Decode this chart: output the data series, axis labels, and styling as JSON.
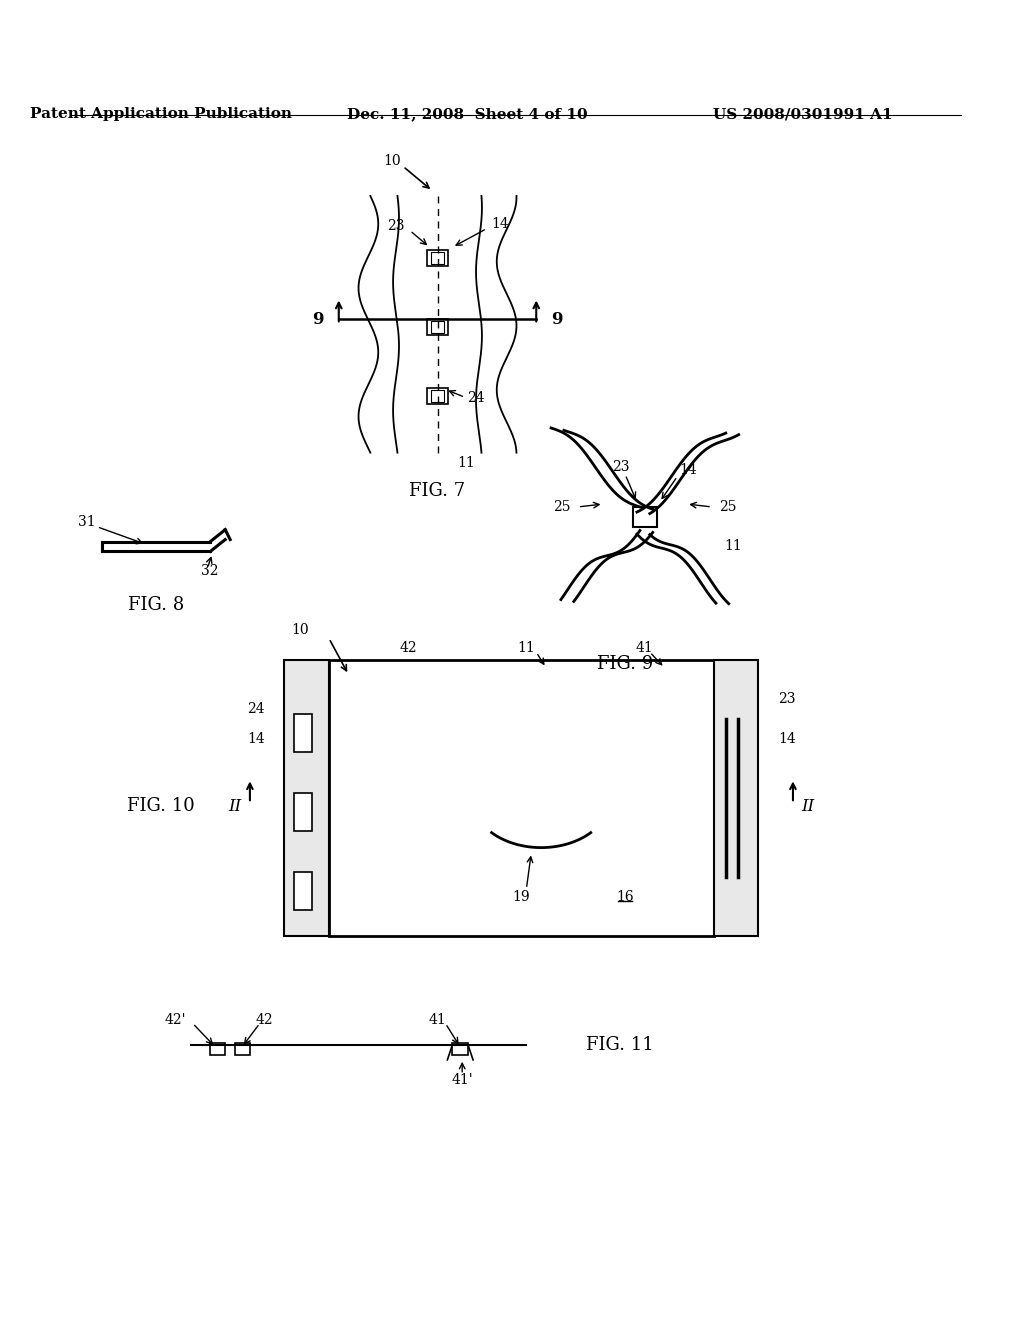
{
  "bg_color": "#ffffff",
  "header_left": "Patent Application Publication",
  "header_mid": "Dec. 11, 2008  Sheet 4 of 10",
  "header_right": "US 2008/0301991 A1",
  "fig7_label": "FIG. 7",
  "fig8_label": "FIG. 8",
  "fig9_label": "FIG. 9",
  "fig10_label": "FIG. 10",
  "fig11_label": "FIG. 11"
}
